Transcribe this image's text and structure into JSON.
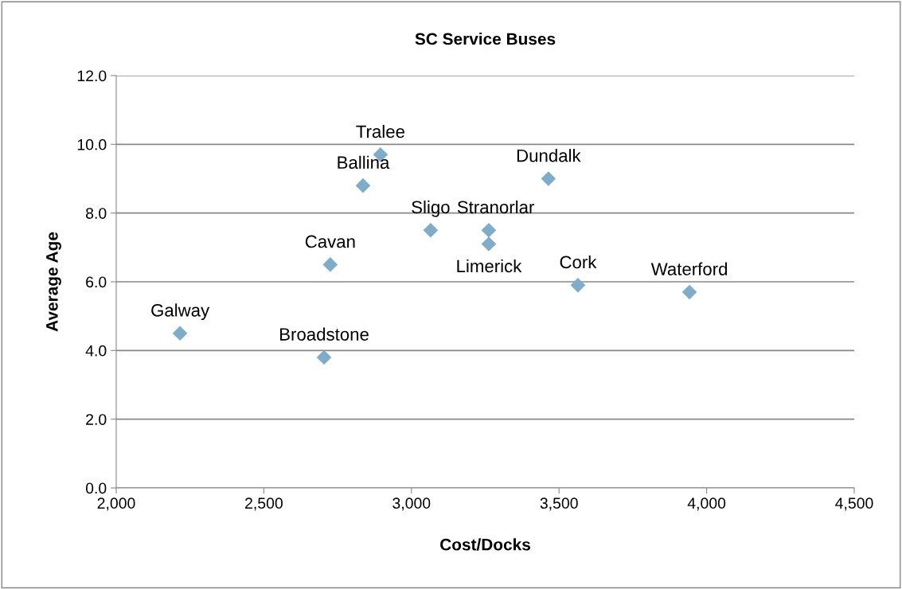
{
  "chart_data": {
    "type": "scatter",
    "title": "SC Service Buses",
    "xlabel": "Cost/Docks",
    "ylabel": "Average Age",
    "series": [
      {
        "color": "#7fadc9",
        "x": [
          2216,
          2704,
          2725,
          2836,
          2895,
          3065,
          3262,
          3262,
          3464,
          3564,
          3942
        ],
        "values": [
          4.5,
          3.8,
          6.5,
          8.8,
          9.7,
          7.5,
          7.5,
          7.1,
          9.0,
          5.9,
          5.7
        ]
      }
    ],
    "annotations": [
      {
        "text": "Galway",
        "x": 2216,
        "y": 4.5
      },
      {
        "text": "Broadstone",
        "x": 2704,
        "y": 3.8
      },
      {
        "text": "Cavan",
        "x": 2725,
        "y": 6.5
      },
      {
        "text": "Ballina",
        "x": 2836,
        "y": 8.8
      },
      {
        "text": "Tralee",
        "x": 2895,
        "y": 9.7
      },
      {
        "text": "Sligo",
        "x": 3065,
        "y": 7.5
      },
      {
        "text": "Stranorlar",
        "x": 3262,
        "y": 7.5
      },
      {
        "text": "Limerick",
        "x": 3262,
        "y": 7.1
      },
      {
        "text": "Dundalk",
        "x": 3464,
        "y": 9.0
      },
      {
        "text": "Cork",
        "x": 3564,
        "y": 5.9
      },
      {
        "text": "Waterford",
        "x": 3942,
        "y": 5.7
      }
    ],
    "xlim": [
      2000,
      4500
    ],
    "xticks": [
      {
        "value": 2000,
        "label": "2,000"
      },
      {
        "value": 2500,
        "label": "2,500"
      },
      {
        "value": 3000,
        "label": "3,000"
      },
      {
        "value": 3500,
        "label": "3,500"
      },
      {
        "value": 4000,
        "label": "4,000"
      },
      {
        "value": 4500,
        "label": "4,500"
      }
    ],
    "ylim": [
      0,
      12
    ],
    "yticks": [
      {
        "value": 0,
        "label": "0.0"
      },
      {
        "value": 2,
        "label": "2.0"
      },
      {
        "value": 4,
        "label": "4.0"
      },
      {
        "value": 6,
        "label": "6.0"
      },
      {
        "value": 8,
        "label": "8.0"
      },
      {
        "value": 10,
        "label": "10.0"
      },
      {
        "value": 12,
        "label": "12.0"
      }
    ],
    "grid": "y",
    "marker": "diamond",
    "legend": false
  }
}
